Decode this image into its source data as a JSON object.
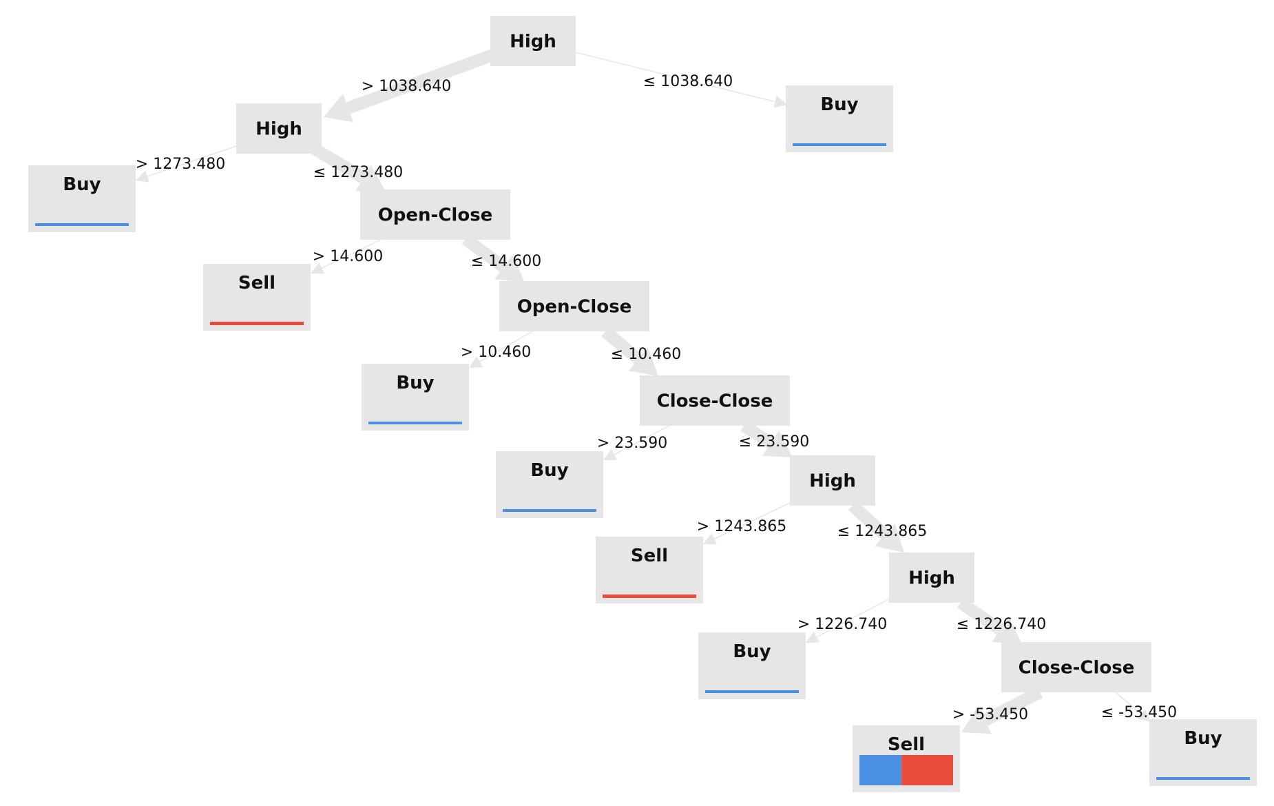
{
  "colors": {
    "node_fill": "#e6e6e6",
    "edge": "#e6e6e6",
    "buy": "#4a90e2",
    "sell": "#e74c3c",
    "text": "#111111"
  },
  "tree": {
    "nodes": [
      {
        "id": "n1",
        "label": "High",
        "kind": "split"
      },
      {
        "id": "n2",
        "label": "Buy",
        "kind": "leaf",
        "dist": {
          "buy": 1.0,
          "sell": 0.0
        },
        "bar": "line"
      },
      {
        "id": "n3",
        "label": "High",
        "kind": "split"
      },
      {
        "id": "n4",
        "label": "Buy",
        "kind": "leaf",
        "dist": {
          "buy": 1.0,
          "sell": 0.0
        },
        "bar": "line"
      },
      {
        "id": "n5",
        "label": "Open-Close",
        "kind": "split"
      },
      {
        "id": "n6",
        "label": "Sell",
        "kind": "leaf",
        "dist": {
          "buy": 0.0,
          "sell": 1.0
        },
        "bar": "line"
      },
      {
        "id": "n7",
        "label": "Open-Close",
        "kind": "split"
      },
      {
        "id": "n8",
        "label": "Buy",
        "kind": "leaf",
        "dist": {
          "buy": 1.0,
          "sell": 0.0
        },
        "bar": "line"
      },
      {
        "id": "n9",
        "label": "Close-Close",
        "kind": "split"
      },
      {
        "id": "n10",
        "label": "Buy",
        "kind": "leaf",
        "dist": {
          "buy": 1.0,
          "sell": 0.0
        },
        "bar": "line"
      },
      {
        "id": "n11",
        "label": "High",
        "kind": "split"
      },
      {
        "id": "n12",
        "label": "Sell",
        "kind": "leaf",
        "dist": {
          "buy": 0.0,
          "sell": 1.0
        },
        "bar": "line"
      },
      {
        "id": "n13",
        "label": "High",
        "kind": "split"
      },
      {
        "id": "n14",
        "label": "Buy",
        "kind": "leaf",
        "dist": {
          "buy": 1.0,
          "sell": 0.0
        },
        "bar": "line"
      },
      {
        "id": "n15",
        "label": "Close-Close",
        "kind": "split"
      },
      {
        "id": "n16",
        "label": "Sell",
        "kind": "leaf",
        "dist": {
          "buy": 0.45,
          "sell": 0.55
        },
        "bar": "block"
      },
      {
        "id": "n17",
        "label": "Buy",
        "kind": "leaf",
        "dist": {
          "buy": 1.0,
          "sell": 0.0
        },
        "bar": "line"
      }
    ],
    "edges": [
      {
        "from": "n1",
        "to": "n3",
        "label": "> 1038.640",
        "weight": "heavy"
      },
      {
        "from": "n1",
        "to": "n2",
        "label": "≤ 1038.640",
        "weight": "light"
      },
      {
        "from": "n3",
        "to": "n4",
        "label": "> 1273.480",
        "weight": "light"
      },
      {
        "from": "n3",
        "to": "n5",
        "label": "≤ 1273.480",
        "weight": "heavy"
      },
      {
        "from": "n5",
        "to": "n6",
        "label": "> 14.600",
        "weight": "light"
      },
      {
        "from": "n5",
        "to": "n7",
        "label": "≤ 14.600",
        "weight": "heavy"
      },
      {
        "from": "n7",
        "to": "n8",
        "label": "> 10.460",
        "weight": "light"
      },
      {
        "from": "n7",
        "to": "n9",
        "label": "≤ 10.460",
        "weight": "heavy"
      },
      {
        "from": "n9",
        "to": "n10",
        "label": "> 23.590",
        "weight": "light"
      },
      {
        "from": "n9",
        "to": "n11",
        "label": "≤ 23.590",
        "weight": "heavy"
      },
      {
        "from": "n11",
        "to": "n12",
        "label": "> 1243.865",
        "weight": "light"
      },
      {
        "from": "n11",
        "to": "n13",
        "label": "≤ 1243.865",
        "weight": "heavy"
      },
      {
        "from": "n13",
        "to": "n14",
        "label": "> 1226.740",
        "weight": "light"
      },
      {
        "from": "n13",
        "to": "n15",
        "label": "≤ 1226.740",
        "weight": "heavy"
      },
      {
        "from": "n15",
        "to": "n16",
        "label": "> -53.450",
        "weight": "heavy"
      },
      {
        "from": "n15",
        "to": "n17",
        "label": "≤ -53.450",
        "weight": "light"
      }
    ]
  }
}
